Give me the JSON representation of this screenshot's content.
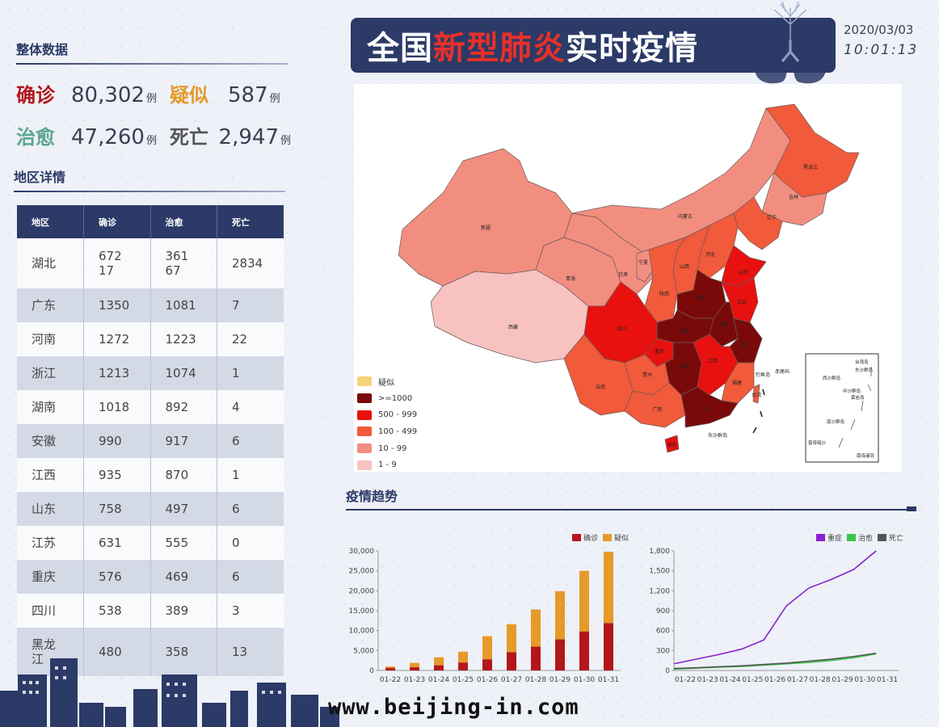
{
  "overview": {
    "title": "整体数据",
    "stats": [
      {
        "label": "确诊",
        "value": "80,302",
        "unit": "例",
        "color": "#b3171c"
      },
      {
        "label": "疑似",
        "value": "587",
        "unit": "例",
        "color": "#e59a2a"
      },
      {
        "label": "治愈",
        "value": "47,260",
        "unit": "例",
        "color": "#5aa78c"
      },
      {
        "label": "死亡",
        "value": "2,947",
        "unit": "例",
        "color": "#555555"
      }
    ]
  },
  "region": {
    "title": "地区详情",
    "headers": [
      "地区",
      "确诊",
      "治愈",
      "死亡"
    ],
    "rows": [
      [
        "湖北",
        "67217",
        "36167",
        "2834"
      ],
      [
        "广东",
        "1350",
        "1081",
        "7"
      ],
      [
        "河南",
        "1272",
        "1223",
        "22"
      ],
      [
        "浙江",
        "1213",
        "1074",
        "1"
      ],
      [
        "湖南",
        "1018",
        "892",
        "4"
      ],
      [
        "安徽",
        "990",
        "917",
        "6"
      ],
      [
        "江西",
        "935",
        "870",
        "1"
      ],
      [
        "山东",
        "758",
        "497",
        "6"
      ],
      [
        "江苏",
        "631",
        "555",
        "0"
      ],
      [
        "重庆",
        "576",
        "469",
        "6"
      ],
      [
        "四川",
        "538",
        "389",
        "3"
      ],
      [
        "黑龙江",
        "480",
        "358",
        "13"
      ]
    ]
  },
  "header": {
    "title_part1": "全国",
    "title_part2": "新型肺炎",
    "title_part3": "实时疫情",
    "date": "2020/03/03",
    "time": "10:01:13"
  },
  "map": {
    "legend": [
      {
        "label": "疑似",
        "color": "#f6d27a"
      },
      {
        "label": ">=1000",
        "color": "#7a0a0a"
      },
      {
        "label": "500 - 999",
        "color": "#e8110f"
      },
      {
        "label": "100 - 499",
        "color": "#f15a3a"
      },
      {
        "label": "10 - 99",
        "color": "#f28e80"
      },
      {
        "label": "1 - 9",
        "color": "#f7c2c0"
      }
    ],
    "labels": {
      "xinjiang": "新疆",
      "xizang": "西藏",
      "qinghai": "青海",
      "gansu": "甘肃",
      "neimenggu": "内蒙古",
      "heilongjiang": "黑龙江",
      "jilin": "吉林",
      "liaoning": "辽宁",
      "ningxia": "宁夏",
      "shaanxi": "陕西",
      "shanxi": "山西",
      "hebei": "河北",
      "shandong": "山东",
      "henan": "河南",
      "hubei": "湖北",
      "sichuan": "四川",
      "chongqing": "重庆",
      "guizhou": "贵州",
      "yunnan": "云南",
      "guangxi": "广西",
      "guangdong": "广东",
      "hunan": "湖南",
      "jiangxi": "江西",
      "fujian": "福建",
      "zhejiang": "浙江",
      "anhui": "安徽",
      "jiangsu": "江苏",
      "hainan": "海南",
      "taiwan": "台湾",
      "diaoyu": "钓鱼岛",
      "chiweiyu": "赤尾屿",
      "dongsha": "东沙群岛"
    },
    "inset": {
      "xisha": "西沙群岛",
      "zhongsha": "中沙群岛",
      "nansha": "南沙群岛",
      "huangyan": "黄岩岛",
      "dongsha": "东沙群岛",
      "taiwan": "台湾岛",
      "zengmu": "曾母暗沙",
      "south_sea": "南海诸岛"
    }
  },
  "trend": {
    "title": "疫情趋势"
  },
  "chart_data": [
    {
      "type": "bar",
      "categories": [
        "01-22",
        "01-23",
        "01-24",
        "01-25",
        "01-26",
        "01-27",
        "01-28",
        "01-29",
        "01-30",
        "01-31"
      ],
      "series": [
        {
          "name": "确诊",
          "values": [
            600,
            800,
            1300,
            2000,
            2800,
            4600,
            6000,
            7800,
            9800,
            11900
          ],
          "color": "#b3171c"
        },
        {
          "name": "疑似",
          "values": [
            400,
            1100,
            2000,
            2700,
            5800,
            7000,
            9300,
            12100,
            15200,
            17900
          ],
          "color": "#e59a2a"
        }
      ],
      "stacked": true,
      "ylim": [
        0,
        30000
      ],
      "yticks": [
        "0",
        "5,000",
        "10,000",
        "15,000",
        "20,000",
        "25,000",
        "30,000"
      ],
      "legend": "top-right"
    },
    {
      "type": "line",
      "categories": [
        "01-22",
        "01-23",
        "01-24",
        "01-25",
        "01-26",
        "01-27",
        "01-28",
        "01-29",
        "01-30",
        "01-31"
      ],
      "series": [
        {
          "name": "重症",
          "values": [
            100,
            170,
            240,
            320,
            460,
            970,
            1240,
            1370,
            1520,
            1800
          ],
          "color": "#8a1fd0"
        },
        {
          "name": "治愈",
          "values": [
            20,
            35,
            50,
            60,
            80,
            100,
            120,
            150,
            190,
            250
          ],
          "color": "#39c64a"
        },
        {
          "name": "死亡",
          "values": [
            30,
            40,
            55,
            70,
            90,
            110,
            140,
            170,
            210,
            260
          ],
          "color": "#555555"
        }
      ],
      "ylim": [
        0,
        1800
      ],
      "yticks": [
        "0",
        "300",
        "600",
        "900",
        "1,200",
        "1,500",
        "1,800"
      ],
      "legend": "top-right"
    }
  ],
  "footer": {
    "url": "www.beijing-in.com"
  }
}
